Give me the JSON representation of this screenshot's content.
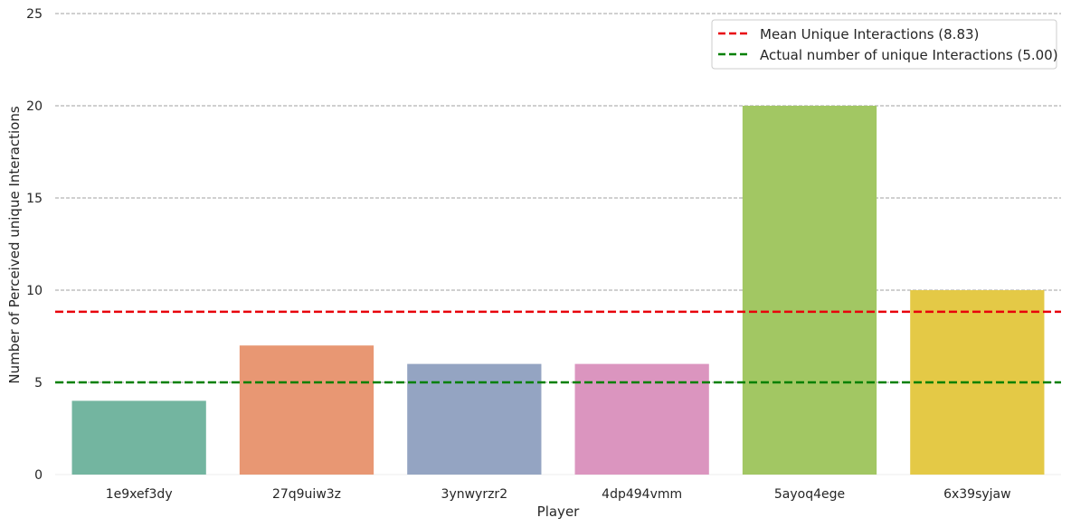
{
  "chart_data": {
    "type": "bar",
    "title": "",
    "xlabel": "Player",
    "ylabel": "Number of Perceived unique Interactions",
    "categories": [
      "1e9xef3dy",
      "27q9uiw3z",
      "3ynwyrzr2",
      "4dp494vmm",
      "5ayoq4ege",
      "6x39syjaw"
    ],
    "values": [
      4,
      7,
      6,
      6,
      20,
      10
    ],
    "bar_colors": [
      "#73b5a0",
      "#e89773",
      "#94a4c2",
      "#db95bf",
      "#a2c763",
      "#e4c946"
    ],
    "ylim": [
      0,
      25
    ],
    "yticks": [
      0,
      5,
      10,
      15,
      20,
      25
    ],
    "grid": true,
    "grid_style": "dashed",
    "legend_position": "upper right",
    "reference_lines": [
      {
        "label": "Mean Unique Interactions (8.83)",
        "value": 8.83,
        "color": "#e8000b",
        "style": "dashed"
      },
      {
        "label": "Actual number of unique Interactions (5.00)",
        "value": 5.0,
        "color": "#008000",
        "style": "dashed"
      }
    ]
  }
}
